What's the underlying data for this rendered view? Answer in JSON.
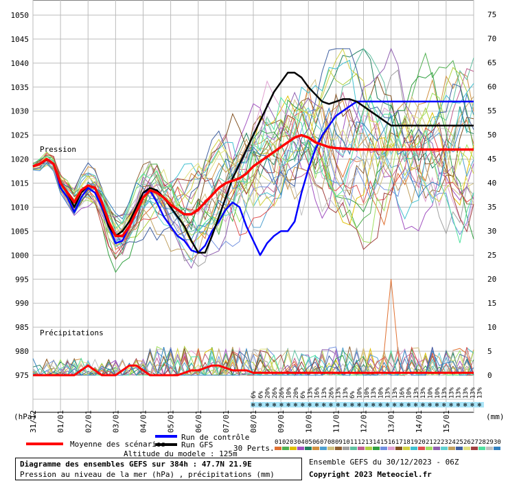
{
  "chart_data": {
    "type": "line",
    "labels": {
      "pressure": "Pression",
      "precip": "Précipitations",
      "left_unit": "(hPa)",
      "right_unit": "(mm)"
    },
    "left_axis": {
      "ticks": [
        975,
        980,
        985,
        990,
        995,
        1000,
        1005,
        1010,
        1015,
        1020,
        1025,
        1030,
        1035,
        1040,
        1045,
        1050
      ],
      "range": [
        975,
        1050
      ]
    },
    "right_axis": {
      "ticks": [
        0,
        5,
        10,
        15,
        20,
        25,
        30,
        35,
        40,
        45,
        50,
        55,
        60,
        65,
        70,
        75
      ],
      "range": [
        0,
        75
      ]
    },
    "x_axis": {
      "ticks": [
        "31/12",
        "01/01",
        "02/01",
        "03/01",
        "04/01",
        "05/01",
        "06/01",
        "07/01",
        "08/01",
        "09/01",
        "10/01",
        "11/01",
        "12/01",
        "13/01",
        "14/01",
        "15/01"
      ],
      "range_hours": [
        0,
        384
      ]
    },
    "gfs_run": {
      "name": "Run GFS",
      "color": "#000000",
      "x": [
        0,
        6,
        12,
        18,
        24,
        30,
        36,
        42,
        48,
        54,
        60,
        66,
        72,
        78,
        84,
        90,
        96,
        102,
        108,
        114,
        120,
        126,
        132,
        138,
        144,
        150,
        156,
        162,
        168,
        174,
        180,
        186,
        192,
        198,
        204,
        210,
        216,
        222,
        228,
        234,
        240,
        246,
        252,
        258,
        264,
        270,
        276,
        282,
        288,
        294,
        300,
        306,
        312,
        318,
        324,
        330,
        336,
        342,
        348,
        354,
        360,
        366,
        372,
        378,
        384
      ],
      "values": [
        1018.5,
        1019,
        1020,
        1019,
        1015,
        1013,
        1010,
        1013,
        1014.5,
        1014,
        1011,
        1006,
        1004,
        1005,
        1007,
        1010,
        1013,
        1014,
        1013.5,
        1012,
        1010,
        1008,
        1006,
        1003,
        1000.5,
        1000.5,
        1004,
        1008,
        1012,
        1016,
        1019,
        1022,
        1025,
        1028,
        1031,
        1034,
        1036,
        1038,
        1038,
        1037,
        1035,
        1033.5,
        1032,
        1031.5,
        1032,
        1032.5,
        1032.5,
        1032,
        1031,
        1030,
        1029,
        1028,
        1027,
        1027,
        1027,
        1027,
        1027,
        1027,
        1027,
        1027,
        1027,
        1027,
        1027,
        1027,
        1027
      ]
    },
    "control_run": {
      "name": "Run de contrôle",
      "color": "#0000ff",
      "values": [
        1018.5,
        1019,
        1020,
        1019,
        1014,
        1012,
        1009,
        1012,
        1014,
        1013,
        1010,
        1006,
        1002.5,
        1003,
        1006,
        1010,
        1013,
        1013.5,
        1011,
        1008,
        1006,
        1004,
        1003,
        1001,
        1000.5,
        1002,
        1005,
        1007,
        1009.5,
        1011,
        1010,
        1006,
        1003,
        1000,
        1002.5,
        1004,
        1005,
        1005,
        1007,
        1013,
        1018,
        1022,
        1025,
        1027,
        1029,
        1030,
        1031,
        1032,
        1032,
        1032,
        1032,
        1032,
        1032,
        1032,
        1032,
        1032,
        1032,
        1032,
        1032,
        1032,
        1032,
        1032,
        1032,
        1032,
        1032
      ]
    },
    "mean_run": {
      "name": "Moyenne des scénarios",
      "color": "#ff0000",
      "values": [
        1018.5,
        1019,
        1020,
        1019,
        1015,
        1013,
        1011,
        1013.5,
        1014.5,
        1014,
        1011,
        1007,
        1004,
        1004,
        1006,
        1009,
        1012,
        1013.5,
        1013,
        1012,
        1010.5,
        1009.5,
        1008.5,
        1008.5,
        1009.5,
        1011,
        1012.5,
        1014,
        1015,
        1015.5,
        1016,
        1017,
        1018.5,
        1019.5,
        1020.5,
        1021.5,
        1022.5,
        1023.5,
        1024.5,
        1025,
        1024.5,
        1023.5,
        1023,
        1022.5,
        1022.3,
        1022.2,
        1022.1,
        1022,
        1022,
        1022,
        1022,
        1022,
        1022,
        1022,
        1022,
        1022,
        1022,
        1022,
        1022,
        1022,
        1022,
        1022,
        1022,
        1022,
        1022
      ]
    },
    "precip_mean": [
      0,
      0,
      0,
      0,
      0,
      0,
      0,
      1,
      2,
      1,
      0,
      0,
      0,
      1,
      2,
      2,
      1,
      0,
      0,
      0,
      0,
      0,
      0.5,
      1,
      1,
      1.5,
      2,
      2,
      1.5,
      1,
      1,
      1,
      0.5,
      0.5,
      0.5,
      0.5,
      0.5,
      0.5,
      0.5,
      0.5,
      0.5,
      0.5,
      0.5,
      0.5,
      0.5,
      0.5,
      0.5,
      0.5,
      0.5,
      0.5,
      0.5,
      0.5,
      0.5,
      0.5,
      0.5,
      0.5,
      0.5,
      0.5,
      0.5,
      0.5,
      0.5,
      0.5,
      0.5,
      0.5,
      0.5
    ],
    "precip_peak": {
      "value": 20,
      "x_hour": 312
    },
    "snow_percent": [
      "6%",
      "6%",
      "20%",
      "26%",
      "26%",
      "10%",
      "20%",
      "6%",
      "13%",
      "16%",
      "13%",
      "26%",
      "13%",
      "13%",
      "6%",
      "10%",
      "10%",
      "13%",
      "10%",
      "13%",
      "13%",
      "16%",
      "10%",
      "13%",
      "13%",
      "10%",
      "10%",
      "13%",
      "13%",
      "13%",
      "13%",
      "13%",
      "13%"
    ],
    "legend": {
      "mean": "Moyenne des scénarios",
      "control": "Run de contrôle",
      "gfs": "Run GFS",
      "perts": "30 Perts.",
      "pert_ids": [
        "01",
        "02",
        "03",
        "04",
        "05",
        "06",
        "07",
        "08",
        "09",
        "10",
        "11",
        "12",
        "13",
        "14",
        "15",
        "16",
        "17",
        "18",
        "19",
        "20",
        "21",
        "22",
        "23",
        "24",
        "25",
        "26",
        "27",
        "28",
        "29",
        "30"
      ],
      "pert_colors": [
        "#e07030",
        "#50b050",
        "#e0c000",
        "#a050c0",
        "#208060",
        "#d09040",
        "#50a0d0",
        "#d0c080",
        "#906030",
        "#a0a0a0",
        "#60c0a0",
        "#c06090",
        "#b0d040",
        "#30a040",
        "#7090e0",
        "#e0a0d0",
        "#805020",
        "#d0d040",
        "#40c0d0",
        "#e05050",
        "#a0e060",
        "#9060b0",
        "#60d0d0",
        "#c0a060",
        "#4060a0",
        "#e0e080",
        "#a04040",
        "#50e0a0",
        "#c0c0c0",
        "#3080c0"
      ]
    },
    "altitude": "Altitude du modele : 125m"
  },
  "footer": {
    "title": "Diagramme des ensembles GEFS sur 384h : 47.7N 21.9E",
    "subtitle": "Pression au niveau de la mer (hPa) , précipitations (mm)",
    "ensemble": "Ensemble GEFS du 30/12/2023 - 06Z",
    "copyright": "Copyright 2023 Meteociel.fr"
  }
}
